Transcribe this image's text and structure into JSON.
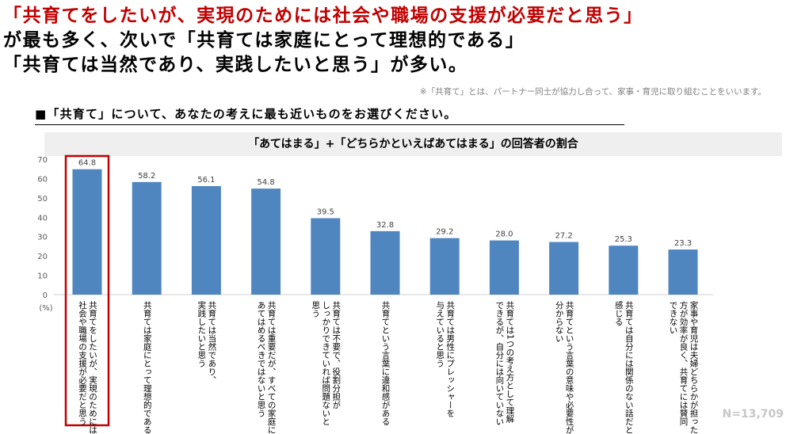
{
  "headline": {
    "line1": "「共育てをしたいが、実現のためには社会や職場の支援が必要だと思う」",
    "line2": "が最も多く、次いで「共育ては家庭にとって理想的である」",
    "line3": "「共育ては当然であり、実践したいと思う」が多い。"
  },
  "note": "※「共育て」とは、パートナー同士が協力し合って、家事・育児に取り組むことをいいます。",
  "question": "■「共育て」について、あなたの考えに最も近いものをお選びください。",
  "sample_size": "N=13,709",
  "colors": {
    "bar": "#4f86c0",
    "highlight": "#c00000",
    "headline": "#c00000",
    "panel": "#efefef"
  },
  "chart_data": {
    "type": "bar",
    "title": "「あてはまる」+「どちらかといえばあてはまる」の回答者の割合",
    "ylabel": "(%)",
    "ylim": [
      0,
      70
    ],
    "yticks": [
      0,
      10,
      20,
      30,
      40,
      50,
      60,
      70
    ],
    "grid": false,
    "highlight_index": 0,
    "categories": [
      "共育てをしたいが、実現のためには\n社会や職場の支援が必要だと思う",
      "共育ては家庭にとって理想的である",
      "共育ては当然であり、\n実践したいと思う",
      "共育ては重要だが、すべての家庭に\nあてはめるべきではないと思う",
      "共育ては不要で、役割分担が\nしっかりできていれば問題ないと\n思う",
      "共育てという言葉に違和感がある",
      "共育ては男性にプレッシャーを\n与えていると思う",
      "共育ては1つの考え方として理解\nできるが、自分には向いていない",
      "共育てという言葉の意味や必要性が\n分からない",
      "共育ては自分には関係のない話だと\n感じる",
      "家事や育児は夫婦どちらかが担った\n方が効率が良く、共育てには賛同\nできない"
    ],
    "values": [
      64.8,
      58.2,
      56.1,
      54.8,
      39.5,
      32.8,
      29.2,
      28.0,
      27.2,
      25.3,
      23.3
    ],
    "value_labels": [
      "64.8",
      "58.2",
      "56.1",
      "54.8",
      "39.5",
      "32.8",
      "29.2",
      "28.0",
      "27.2",
      "25.3",
      "23.3"
    ]
  }
}
